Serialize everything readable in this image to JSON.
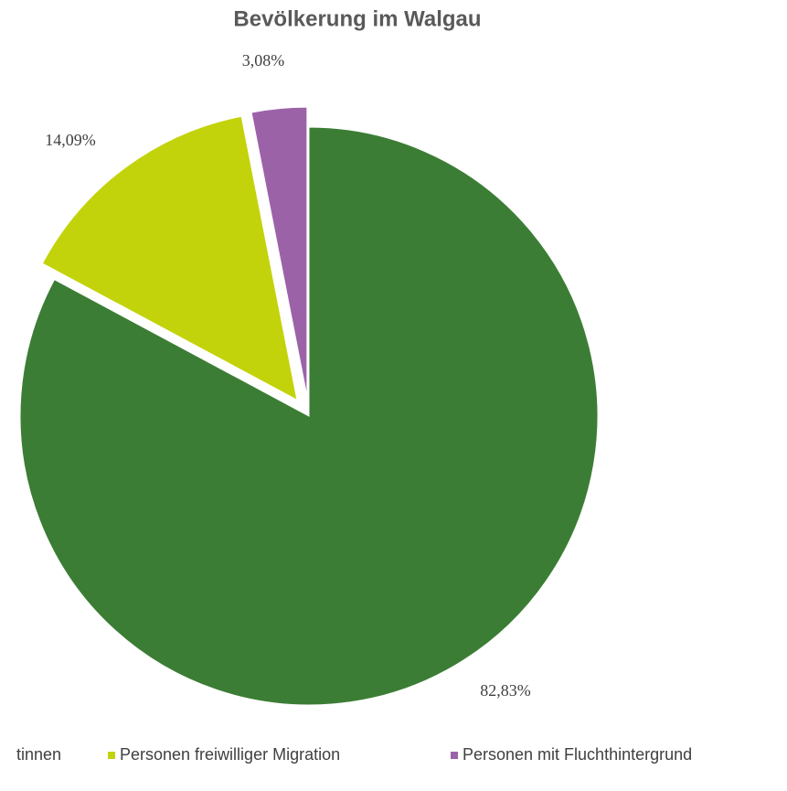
{
  "chart_data": {
    "type": "pie",
    "title": "Bevölkerung im Walgau",
    "categories": [
      "tinnen",
      "Personen freiwilliger Migration",
      "Personen mit Fluchthintergrund"
    ],
    "values": [
      82.83,
      14.09,
      3.08
    ],
    "value_labels": [
      "82,83%",
      "14,09%",
      "3,08%"
    ],
    "colors": [
      "#3b7d34",
      "#c3d30b",
      "#9c62a8"
    ],
    "legend": "bottom"
  }
}
